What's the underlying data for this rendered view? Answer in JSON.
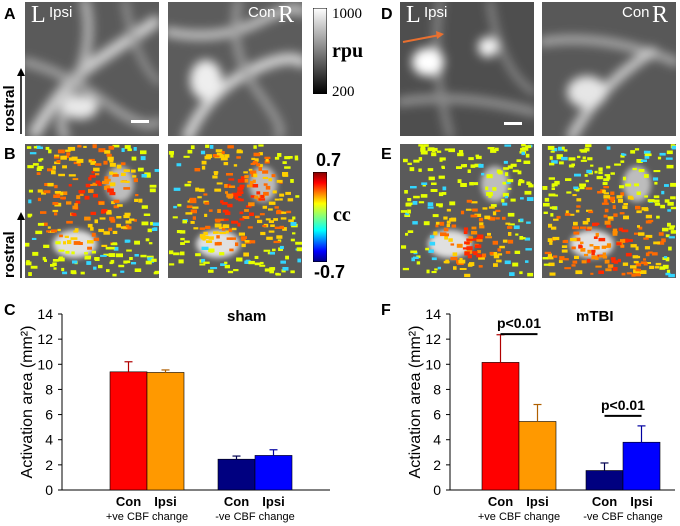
{
  "panels": {
    "A": "A",
    "B": "B",
    "C": "C",
    "D": "D",
    "E": "E",
    "F": "F"
  },
  "image_labels": {
    "left_letter": "L",
    "right_letter": "R",
    "ipsi": "Ipsi",
    "con": "Con",
    "rostral": "rostral"
  },
  "rpu_colorbar": {
    "max": "1000",
    "min": "200",
    "unit": "rpu"
  },
  "cc_colorbar": {
    "max": "0.7",
    "min": "-0.7",
    "unit": "cc"
  },
  "colors": {
    "con_pos": "#ff0000",
    "ipsi_pos": "#ff9900",
    "con_neg": "#000080",
    "ipsi_neg": "#0000ff",
    "arrow": "#e87030"
  },
  "chart_data": [
    {
      "type": "bar",
      "panel": "C",
      "title": "sham",
      "ylabel": "Activation area (mm²)",
      "ylim": [
        0,
        14
      ],
      "yticks": [
        "0",
        "2",
        "4",
        "6",
        "8",
        "10",
        "12",
        "14"
      ],
      "groups": [
        {
          "name": "+ve CBF change",
          "bars": [
            {
              "label": "Con",
              "value": 9.4,
              "error": 0.8
            },
            {
              "label": "Ipsi",
              "value": 9.35,
              "error": 0.2
            }
          ]
        },
        {
          "name": "-ve CBF change",
          "bars": [
            {
              "label": "Con",
              "value": 2.45,
              "error": 0.25
            },
            {
              "label": "Ipsi",
              "value": 2.75,
              "error": 0.45
            }
          ]
        }
      ],
      "annotations": []
    },
    {
      "type": "bar",
      "panel": "F",
      "title": "mTBI",
      "ylabel": "Activation area (mm²)",
      "ylim": [
        0,
        14
      ],
      "yticks": [
        "0",
        "2",
        "4",
        "6",
        "8",
        "10",
        "12",
        "14"
      ],
      "groups": [
        {
          "name": "+ve CBF change",
          "bars": [
            {
              "label": "Con",
              "value": 10.15,
              "error": 2.2
            },
            {
              "label": "Ipsi",
              "value": 5.45,
              "error": 1.35
            }
          ]
        },
        {
          "name": "-ve CBF change",
          "bars": [
            {
              "label": "Con",
              "value": 1.55,
              "error": 0.6
            },
            {
              "label": "Ipsi",
              "value": 3.8,
              "error": 1.3
            }
          ]
        }
      ],
      "annotations": [
        "p<0.01",
        "p<0.01"
      ]
    }
  ]
}
